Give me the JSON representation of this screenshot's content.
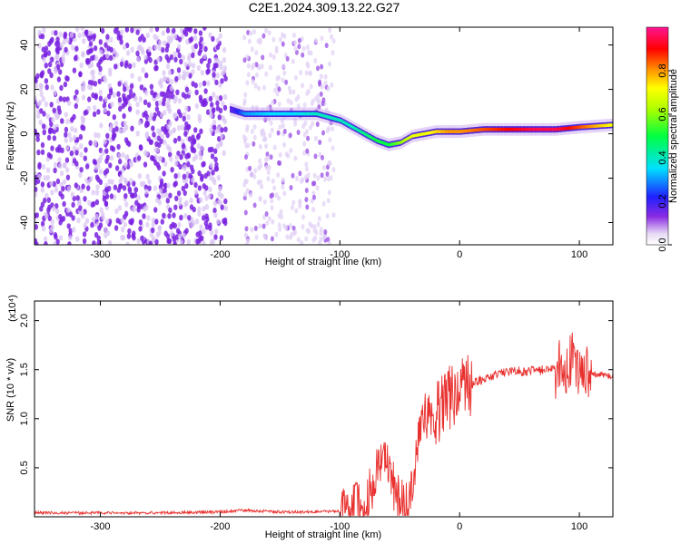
{
  "title": "C2E1.2024.309.13.22.G27",
  "chart_data": [
    {
      "type": "heatmap",
      "xlabel": "Height of straight line (km)",
      "ylabel": "Frequency (Hz)",
      "xlim": [
        -355,
        128
      ],
      "ylim": [
        -50,
        48
      ],
      "xticks": [
        -300,
        -200,
        -100,
        0,
        100
      ],
      "yticks": [
        -40,
        -20,
        0,
        20,
        40
      ],
      "colorbar": {
        "label": "Normalized spectral amplitude",
        "range": [
          0,
          1
        ],
        "ticks": [
          "0.0",
          "0.2",
          "0.4",
          "0.6",
          "0.8"
        ]
      },
      "ridge": {
        "x": [
          -192,
          -180,
          -160,
          -140,
          -120,
          -100,
          -90,
          -80,
          -70,
          -60,
          -50,
          -40,
          -30,
          -20,
          -10,
          0,
          20,
          40,
          60,
          80,
          100,
          128
        ],
        "y": [
          11,
          9,
          9,
          9,
          9,
          6,
          3,
          0,
          -3,
          -5,
          -4,
          -1,
          0,
          1,
          1,
          1,
          2,
          2,
          2,
          2,
          3,
          4
        ],
        "amplitude": [
          0.15,
          0.3,
          0.35,
          0.35,
          0.4,
          0.4,
          0.4,
          0.45,
          0.5,
          0.5,
          0.6,
          0.7,
          0.7,
          0.75,
          0.8,
          0.8,
          0.85,
          0.9,
          0.95,
          0.95,
          0.85,
          0.7
        ]
      }
    },
    {
      "type": "line",
      "xlabel": "Height of straight line (km)",
      "ylabel": "SNR (10 * v/v)",
      "scale_label": "(x10⁴)",
      "xlim": [
        -355,
        128
      ],
      "ylim": [
        0,
        2.2
      ],
      "xticks": [
        -300,
        -200,
        -100,
        0,
        100
      ],
      "yticks": [
        "0.5",
        "1.0",
        "1.5",
        "2.0"
      ],
      "color": "#e8302e",
      "x": [
        -355,
        -300,
        -250,
        -200,
        -180,
        -170,
        -150,
        -120,
        -100,
        -80,
        -72,
        -66,
        -60,
        -55,
        -50,
        -45,
        -40,
        -35,
        -30,
        -25,
        -20,
        -15,
        -10,
        -5,
        0,
        5,
        10,
        20,
        30,
        40,
        60,
        80,
        90,
        95,
        100,
        103,
        105,
        110,
        120,
        128
      ],
      "y": [
        0.04,
        0.04,
        0.04,
        0.05,
        0.07,
        0.06,
        0.05,
        0.05,
        0.06,
        0.12,
        0.35,
        0.55,
        0.6,
        0.3,
        0.15,
        0.12,
        0.35,
        0.7,
        1.0,
        1.05,
        1.05,
        1.1,
        1.25,
        1.2,
        1.3,
        1.3,
        1.35,
        1.4,
        1.45,
        1.48,
        1.49,
        1.5,
        1.55,
        1.6,
        1.5,
        1.6,
        1.45,
        1.45,
        1.45,
        1.43
      ]
    }
  ]
}
